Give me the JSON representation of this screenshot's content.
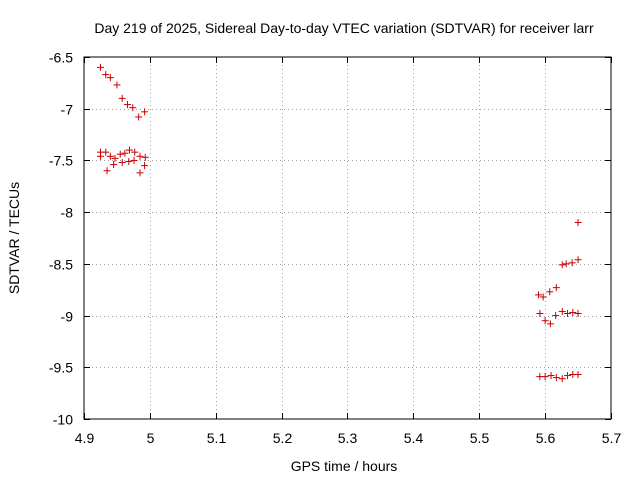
{
  "chart_data": {
    "type": "scatter",
    "title": "Day 219 of 2025, Sidereal Day-to-day VTEC variation (SDTVAR) for receiver larr",
    "xlabel": "GPS time / hours",
    "ylabel": "SDTVAR / TECUs",
    "xlim": [
      4.9,
      5.7
    ],
    "ylim": [
      -10,
      -6.5
    ],
    "xticks": [
      "4.9",
      "5",
      "5.1",
      "5.2",
      "5.3",
      "5.4",
      "5.5",
      "5.6",
      "5.7"
    ],
    "yticks": [
      "-6.5",
      "-7",
      "-7.5",
      "-8",
      "-8.5",
      "-9",
      "-9.5",
      "-10"
    ],
    "xtick_values": [
      4.9,
      5.0,
      5.1,
      5.2,
      5.3,
      5.4,
      5.5,
      5.6,
      5.7
    ],
    "ytick_values": [
      -6.5,
      -7,
      -7.5,
      -8,
      -8.5,
      -9,
      -9.5,
      -10
    ],
    "grid": true,
    "marker": "+",
    "color": "#c80000",
    "series": [
      {
        "name": "SDTVAR",
        "points": [
          [
            4.925,
            -6.6
          ],
          [
            4.933,
            -6.67
          ],
          [
            4.94,
            -6.7
          ],
          [
            4.95,
            -6.77
          ],
          [
            4.958,
            -6.9
          ],
          [
            4.966,
            -6.96
          ],
          [
            4.974,
            -6.99
          ],
          [
            4.983,
            -7.08
          ],
          [
            4.992,
            -7.03
          ],
          [
            4.925,
            -7.42
          ],
          [
            4.933,
            -7.42
          ],
          [
            4.94,
            -7.46
          ],
          [
            4.947,
            -7.48
          ],
          [
            4.955,
            -7.44
          ],
          [
            4.962,
            -7.43
          ],
          [
            4.969,
            -7.4
          ],
          [
            4.977,
            -7.42
          ],
          [
            4.985,
            -7.46
          ],
          [
            4.993,
            -7.47
          ],
          [
            4.935,
            -7.6
          ],
          [
            4.945,
            -7.54
          ],
          [
            4.958,
            -7.52
          ],
          [
            4.968,
            -7.51
          ],
          [
            4.976,
            -7.5
          ],
          [
            4.985,
            -7.62
          ],
          [
            4.992,
            -7.55
          ],
          [
            4.925,
            -7.46
          ],
          [
            5.59,
            -8.8
          ],
          [
            5.597,
            -8.82
          ],
          [
            5.607,
            -8.77
          ],
          [
            5.617,
            -8.73
          ],
          [
            5.626,
            -8.51
          ],
          [
            5.632,
            -8.5
          ],
          [
            5.641,
            -8.49
          ],
          [
            5.65,
            -8.46
          ],
          [
            5.65,
            -8.1
          ],
          [
            5.592,
            -8.98
          ],
          [
            5.6,
            -9.05
          ],
          [
            5.608,
            -9.08
          ],
          [
            5.616,
            -9.0
          ],
          [
            5.626,
            -8.96
          ],
          [
            5.634,
            -8.98
          ],
          [
            5.642,
            -8.97
          ],
          [
            5.65,
            -8.98
          ],
          [
            5.592,
            -9.59
          ],
          [
            5.6,
            -9.59
          ],
          [
            5.609,
            -9.58
          ],
          [
            5.617,
            -9.6
          ],
          [
            5.626,
            -9.61
          ],
          [
            5.634,
            -9.58
          ],
          [
            5.642,
            -9.57
          ],
          [
            5.65,
            -9.57
          ]
        ]
      }
    ]
  }
}
